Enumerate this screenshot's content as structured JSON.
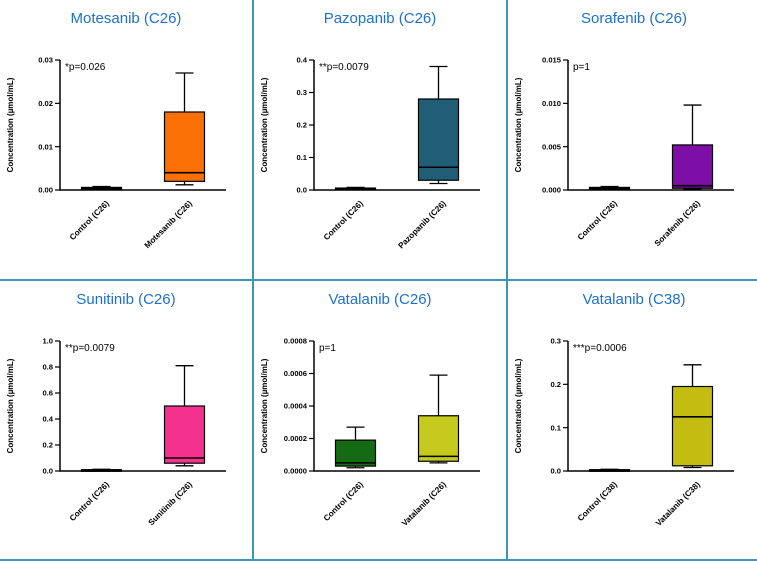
{
  "figure": {
    "background": "#ffffff",
    "grid_line_color": "#3e96ba",
    "title_color": "#1e70cc"
  },
  "chart_data": [
    {
      "type": "box",
      "title": "Motesanib (C26)",
      "p_label": "*p=0.026",
      "ylabel": "Concentration (µmol/mL)",
      "ylim": [
        0,
        0.03
      ],
      "yticks": [
        0,
        0.01,
        0.02,
        0.03
      ],
      "ytick_labels": [
        "0.00",
        "0.01",
        "0.02",
        "0.03"
      ],
      "categories": [
        "Control (C26)",
        "Motesanib (C26)"
      ],
      "boxes": [
        {
          "name": "control",
          "low": 0.0001,
          "q1": 0.0002,
          "median": 0.0004,
          "q3": 0.0006,
          "high": 0.0008,
          "fill": "#111111"
        },
        {
          "name": "motesanib",
          "low": 0.0012,
          "q1": 0.002,
          "median": 0.004,
          "q3": 0.018,
          "high": 0.027,
          "fill": "#fb7005"
        }
      ],
      "legend": "none",
      "grid": "off"
    },
    {
      "type": "box",
      "title": "Pazopanib (C26)",
      "p_label": "**p=0.0079",
      "ylabel": "Concentration (µmol/mL)",
      "ylim": [
        0,
        0.4
      ],
      "yticks": [
        0,
        0.1,
        0.2,
        0.3,
        0.4
      ],
      "ytick_labels": [
        "0.0",
        "0.1",
        "0.2",
        "0.3",
        "0.4"
      ],
      "categories": [
        "Control (C26)",
        "Pazopanib (C26)"
      ],
      "boxes": [
        {
          "name": "control",
          "low": 0.001,
          "q1": 0.002,
          "median": 0.004,
          "q3": 0.006,
          "high": 0.008,
          "fill": "#111111"
        },
        {
          "name": "pazopanib",
          "low": 0.02,
          "q1": 0.03,
          "median": 0.07,
          "q3": 0.28,
          "high": 0.38,
          "fill": "#205e76"
        }
      ],
      "legend": "none",
      "grid": "off"
    },
    {
      "type": "box",
      "title": "Sorafenib (C26)",
      "p_label": "p=1",
      "ylabel": "Concentration (µmol/mL)",
      "ylim": [
        0,
        0.015
      ],
      "yticks": [
        0,
        0.005,
        0.01,
        0.015
      ],
      "ytick_labels": [
        "0.000",
        "0.005",
        "0.010",
        "0.015"
      ],
      "categories": [
        "Control (C26)",
        "Sorafenib (C26)"
      ],
      "boxes": [
        {
          "name": "control",
          "low": 5e-05,
          "q1": 0.0001,
          "median": 0.0002,
          "q3": 0.0003,
          "high": 0.0004,
          "fill": "#111111"
        },
        {
          "name": "sorafenib",
          "low": 0.0001,
          "q1": 0.0002,
          "median": 0.0005,
          "q3": 0.0052,
          "high": 0.0098,
          "fill": "#7d0ea6"
        }
      ],
      "legend": "none",
      "grid": "off"
    },
    {
      "type": "box",
      "title": "Sunitinib (C26)",
      "p_label": "**p=0.0079",
      "ylabel": "Concentration (µmol/mL)",
      "ylim": [
        0,
        1.0
      ],
      "yticks": [
        0,
        0.2,
        0.4,
        0.6,
        0.8,
        1.0
      ],
      "ytick_labels": [
        "0.0",
        "0.2",
        "0.4",
        "0.6",
        "0.8",
        "1.0"
      ],
      "categories": [
        "Control (C26)",
        "Sunitinib (C26)"
      ],
      "boxes": [
        {
          "name": "control",
          "low": 0.002,
          "q1": 0.004,
          "median": 0.007,
          "q3": 0.01,
          "high": 0.013,
          "fill": "#111111"
        },
        {
          "name": "sunitinib",
          "low": 0.04,
          "q1": 0.06,
          "median": 0.1,
          "q3": 0.5,
          "high": 0.81,
          "fill": "#f5318f"
        }
      ],
      "legend": "none",
      "grid": "off"
    },
    {
      "type": "box",
      "title": "Vatalanib (C26)",
      "p_label": "p=1",
      "ylabel": "Concentration (µmol/mL)",
      "ylim": [
        0,
        0.0008
      ],
      "yticks": [
        0,
        0.0002,
        0.0004,
        0.0006,
        0.0008
      ],
      "ytick_labels": [
        "0.0000",
        "0.0002",
        "0.0004",
        "0.0006",
        "0.0008"
      ],
      "categories": [
        "Control (C26)",
        "Vatalanib (C26)"
      ],
      "boxes": [
        {
          "name": "control",
          "low": 2e-05,
          "q1": 3e-05,
          "median": 5e-05,
          "q3": 0.00019,
          "high": 0.00027,
          "fill": "#146b14"
        },
        {
          "name": "vatalanib",
          "low": 5e-05,
          "q1": 6e-05,
          "median": 9e-05,
          "q3": 0.00034,
          "high": 0.00059,
          "fill": "#c6ca1f"
        }
      ],
      "legend": "none",
      "grid": "off"
    },
    {
      "type": "box",
      "title": "Vatalanib (C38)",
      "p_label": "***p=0.0006",
      "ylabel": "Concentration (µmol/mL)",
      "ylim": [
        0,
        0.3
      ],
      "yticks": [
        0,
        0.1,
        0.2,
        0.3
      ],
      "ytick_labels": [
        "0.0",
        "0.1",
        "0.2",
        "0.3"
      ],
      "categories": [
        "Control (C38)",
        "Vatalanib (C38)"
      ],
      "boxes": [
        {
          "name": "control",
          "low": 0.0005,
          "q1": 0.001,
          "median": 0.002,
          "q3": 0.003,
          "high": 0.004,
          "fill": "#111111"
        },
        {
          "name": "vatalanib",
          "low": 0.008,
          "q1": 0.012,
          "median": 0.125,
          "q3": 0.195,
          "high": 0.245,
          "fill": "#c3bd11"
        }
      ],
      "legend": "none",
      "grid": "off"
    }
  ]
}
